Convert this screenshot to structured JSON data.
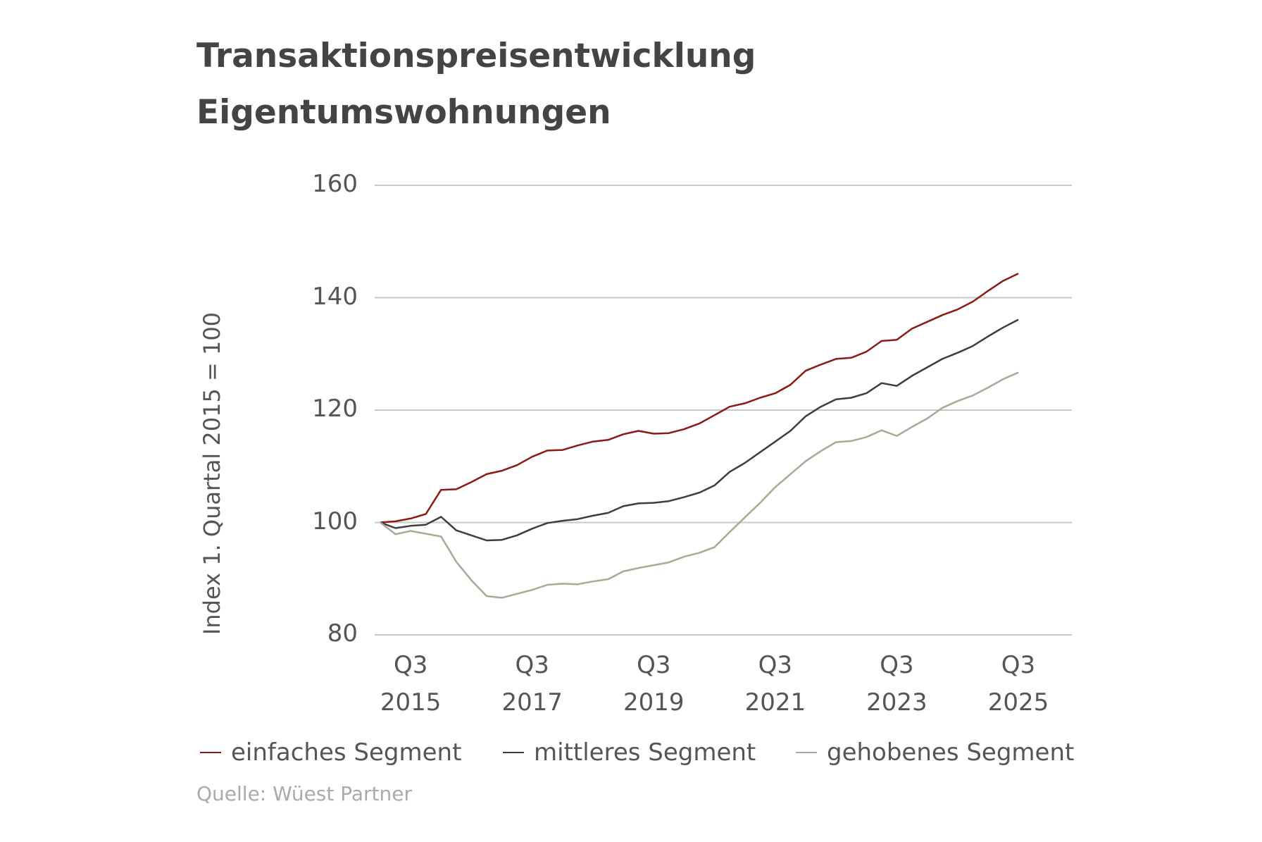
{
  "chart_data": {
    "type": "line",
    "title": "Transaktionspreisentwicklung Eigentumswohnungen",
    "y_label": "Index 1. Quartal 2015 = 100",
    "source": "Quelle: Wüest Partner",
    "categories": [
      null,
      null,
      "Q3 2015",
      null,
      null,
      null,
      null,
      null,
      null,
      null,
      "Q3 2017",
      null,
      null,
      null,
      null,
      null,
      null,
      null,
      "Q3 2019",
      null,
      null,
      null,
      null,
      null,
      null,
      null,
      "Q3 2021",
      null,
      null,
      null,
      null,
      null,
      null,
      null,
      "Q3 2023",
      null,
      null,
      null,
      null,
      null,
      null,
      null,
      "Q3 2025"
    ],
    "ylim": [
      80,
      160
    ],
    "yticks": [
      80,
      100,
      120,
      140,
      160
    ],
    "grid": true,
    "legend": "bottom",
    "series": [
      {
        "name": "einfaches Segment",
        "color": "#8b1a14",
        "values": [
          100,
          100.2,
          100.7,
          101.5,
          105.8,
          105.9,
          107.2,
          108.6,
          109.2,
          110.2,
          111.7,
          112.8,
          112.9,
          113.7,
          114.4,
          114.7,
          115.7,
          116.3,
          115.8,
          115.9,
          116.6,
          117.6,
          119.1,
          120.6,
          121.2,
          122.2,
          123.0,
          124.5,
          127.0,
          128.1,
          129.1,
          129.3,
          130.4,
          132.3,
          132.5,
          134.5,
          135.7,
          136.9,
          137.9,
          139.3,
          141.2,
          143.0,
          144.3
        ]
      },
      {
        "name": "mittleres Segment",
        "color": "#3d3d3d",
        "values": [
          100,
          99.0,
          99.4,
          99.6,
          101.0,
          98.6,
          97.7,
          96.8,
          96.9,
          97.7,
          98.9,
          99.9,
          100.3,
          100.6,
          101.2,
          101.7,
          102.9,
          103.4,
          103.5,
          103.8,
          104.5,
          105.3,
          106.6,
          109.0,
          110.6,
          112.5,
          114.4,
          116.3,
          118.9,
          120.6,
          121.9,
          122.2,
          123.0,
          124.8,
          124.3,
          126.1,
          127.6,
          129.1,
          130.2,
          131.4,
          133.1,
          134.7,
          136.1
        ]
      },
      {
        "name": "gehobenes Segment",
        "color": "#b0a696",
        "values": [
          100,
          97.9,
          98.5,
          98.0,
          97.5,
          93.0,
          89.7,
          86.9,
          86.6,
          87.3,
          88.0,
          88.9,
          89.1,
          89.0,
          89.5,
          89.9,
          91.3,
          91.9,
          92.4,
          92.9,
          93.9,
          94.6,
          95.6,
          98.3,
          100.9,
          103.5,
          106.3,
          108.6,
          110.9,
          112.7,
          114.3,
          114.5,
          115.2,
          116.4,
          115.4,
          117.0,
          118.5,
          120.4,
          121.6,
          122.6,
          124.0,
          125.5,
          126.7
        ]
      }
    ]
  }
}
